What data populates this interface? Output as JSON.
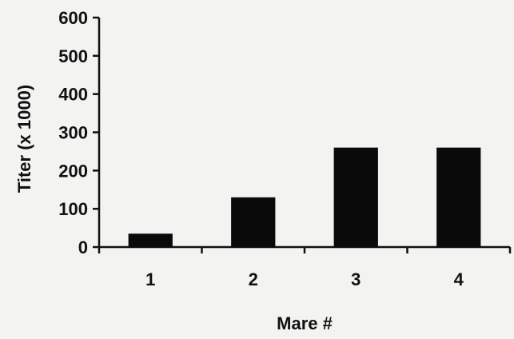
{
  "chart_data": {
    "type": "bar",
    "title": "",
    "xlabel": "Mare #",
    "ylabel": "Titer (x 1000)",
    "categories": [
      "1",
      "2",
      "3",
      "4"
    ],
    "values": [
      35,
      130,
      260,
      260
    ],
    "ylim": [
      0,
      600
    ],
    "yticks": [
      "0",
      "100",
      "200",
      "300",
      "400",
      "500",
      "600"
    ],
    "grid": false,
    "bar_color": "#0a0a0a",
    "background_color": "#f3f3f1"
  }
}
